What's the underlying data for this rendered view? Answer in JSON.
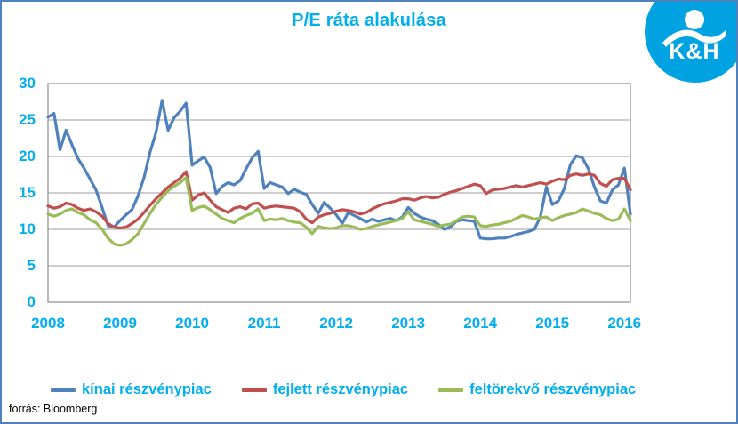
{
  "header": {
    "title": "P/E ráta alakulása"
  },
  "logo": {
    "text": "K&H",
    "circle_color": "#00a2e2",
    "glyph": "person-wave-icon"
  },
  "source": {
    "label": "forrás: Bloomberg"
  },
  "colors": {
    "accent_text": "#00aeef",
    "outer_border": "#4f81bd",
    "gridline": "#9d9d9d",
    "plot_border": "#8c8c8c"
  },
  "chart_data": {
    "type": "line",
    "title": "P/E ráta alakulása",
    "frequency": "monthly",
    "x_start": "2008-01",
    "x_end": "2016-02",
    "x_tick_labels": [
      "2008",
      "2009",
      "2010",
      "2011",
      "2012",
      "2013",
      "2014",
      "2015",
      "2016"
    ],
    "y_ticks": [
      0,
      5,
      10,
      15,
      20,
      25,
      30
    ],
    "ylim": [
      0,
      30
    ],
    "grid": true,
    "legend_position": "bottom",
    "series": [
      {
        "name": "kínai részvénypiac",
        "color": "#4F81BD",
        "values": [
          25.4,
          25.9,
          20.9,
          23.6,
          21.6,
          19.7,
          18.4,
          16.9,
          15.4,
          13.0,
          10.5,
          10.3,
          11.2,
          12.0,
          12.7,
          14.6,
          17.1,
          20.6,
          23.3,
          27.7,
          23.6,
          25.3,
          26.2,
          27.3,
          18.8,
          19.4,
          19.9,
          18.5,
          14.9,
          15.9,
          16.4,
          16.1,
          16.7,
          18.3,
          19.8,
          20.7,
          15.6,
          16.4,
          16.1,
          15.8,
          14.9,
          15.5,
          15.1,
          14.8,
          13.4,
          12.2,
          13.7,
          12.9,
          12.0,
          10.8,
          12.3,
          11.9,
          11.5,
          11.0,
          11.4,
          11.1,
          11.3,
          11.5,
          11.2,
          11.7,
          13.0,
          12.2,
          11.7,
          11.4,
          11.2,
          10.7,
          10.0,
          10.3,
          11.1,
          11.3,
          11.2,
          11.1,
          8.8,
          8.7,
          8.7,
          8.8,
          8.8,
          9.0,
          9.3,
          9.5,
          9.7,
          10.0,
          11.7,
          15.8,
          13.4,
          13.9,
          15.6,
          18.9,
          20.1,
          19.8,
          18.3,
          15.8,
          13.9,
          13.6,
          15.4,
          16.1,
          18.4,
          12.1
        ]
      },
      {
        "name": "fejlett részvénypiac",
        "color": "#C0504D",
        "values": [
          13.2,
          12.9,
          13.1,
          13.6,
          13.4,
          12.9,
          12.6,
          12.8,
          12.4,
          11.8,
          10.8,
          10.3,
          10.2,
          10.3,
          10.8,
          11.4,
          12.3,
          13.3,
          14.2,
          15.0,
          15.8,
          16.4,
          17.0,
          17.9,
          14.0,
          14.7,
          15.0,
          14.0,
          13.1,
          12.7,
          12.3,
          12.9,
          13.1,
          12.8,
          13.5,
          13.6,
          12.9,
          13.1,
          13.2,
          13.1,
          13.0,
          12.9,
          12.4,
          11.4,
          10.9,
          11.7,
          12.0,
          12.2,
          12.5,
          12.7,
          12.6,
          12.4,
          12.1,
          12.3,
          12.8,
          13.2,
          13.5,
          13.7,
          13.9,
          14.2,
          14.2,
          14.0,
          14.3,
          14.5,
          14.3,
          14.4,
          14.8,
          15.1,
          15.3,
          15.6,
          15.9,
          16.2,
          16.0,
          14.9,
          15.4,
          15.5,
          15.6,
          15.8,
          16.0,
          15.8,
          16.0,
          16.2,
          16.4,
          16.2,
          16.6,
          16.9,
          16.8,
          17.4,
          17.6,
          17.4,
          17.6,
          17.4,
          16.3,
          15.9,
          16.8,
          17.0,
          17.0,
          15.4
        ]
      },
      {
        "name": "feltörekvő részvénypiac",
        "color": "#9BBB59",
        "values": [
          12.1,
          11.8,
          12.1,
          12.6,
          12.8,
          12.3,
          12.0,
          11.3,
          10.9,
          10.0,
          8.8,
          8.0,
          7.8,
          8.0,
          8.6,
          9.4,
          10.8,
          12.2,
          13.4,
          14.4,
          15.3,
          15.9,
          16.4,
          17.1,
          12.6,
          13.0,
          13.2,
          12.7,
          12.1,
          11.5,
          11.2,
          10.9,
          11.5,
          11.9,
          12.2,
          12.8,
          11.2,
          11.4,
          11.3,
          11.5,
          11.2,
          11.0,
          10.9,
          10.3,
          9.4,
          10.4,
          10.2,
          10.1,
          10.2,
          10.5,
          10.5,
          10.3,
          10.0,
          10.1,
          10.4,
          10.6,
          10.8,
          11.0,
          11.2,
          11.5,
          12.4,
          11.3,
          11.1,
          10.9,
          10.7,
          10.4,
          10.6,
          10.7,
          11.2,
          11.7,
          11.8,
          11.7,
          10.5,
          10.4,
          10.6,
          10.7,
          10.9,
          11.1,
          11.5,
          11.9,
          11.7,
          11.4,
          11.6,
          11.7,
          11.2,
          11.6,
          11.9,
          12.1,
          12.3,
          12.8,
          12.5,
          12.2,
          12.0,
          11.5,
          11.2,
          11.4,
          12.8,
          11.2
        ]
      }
    ]
  }
}
